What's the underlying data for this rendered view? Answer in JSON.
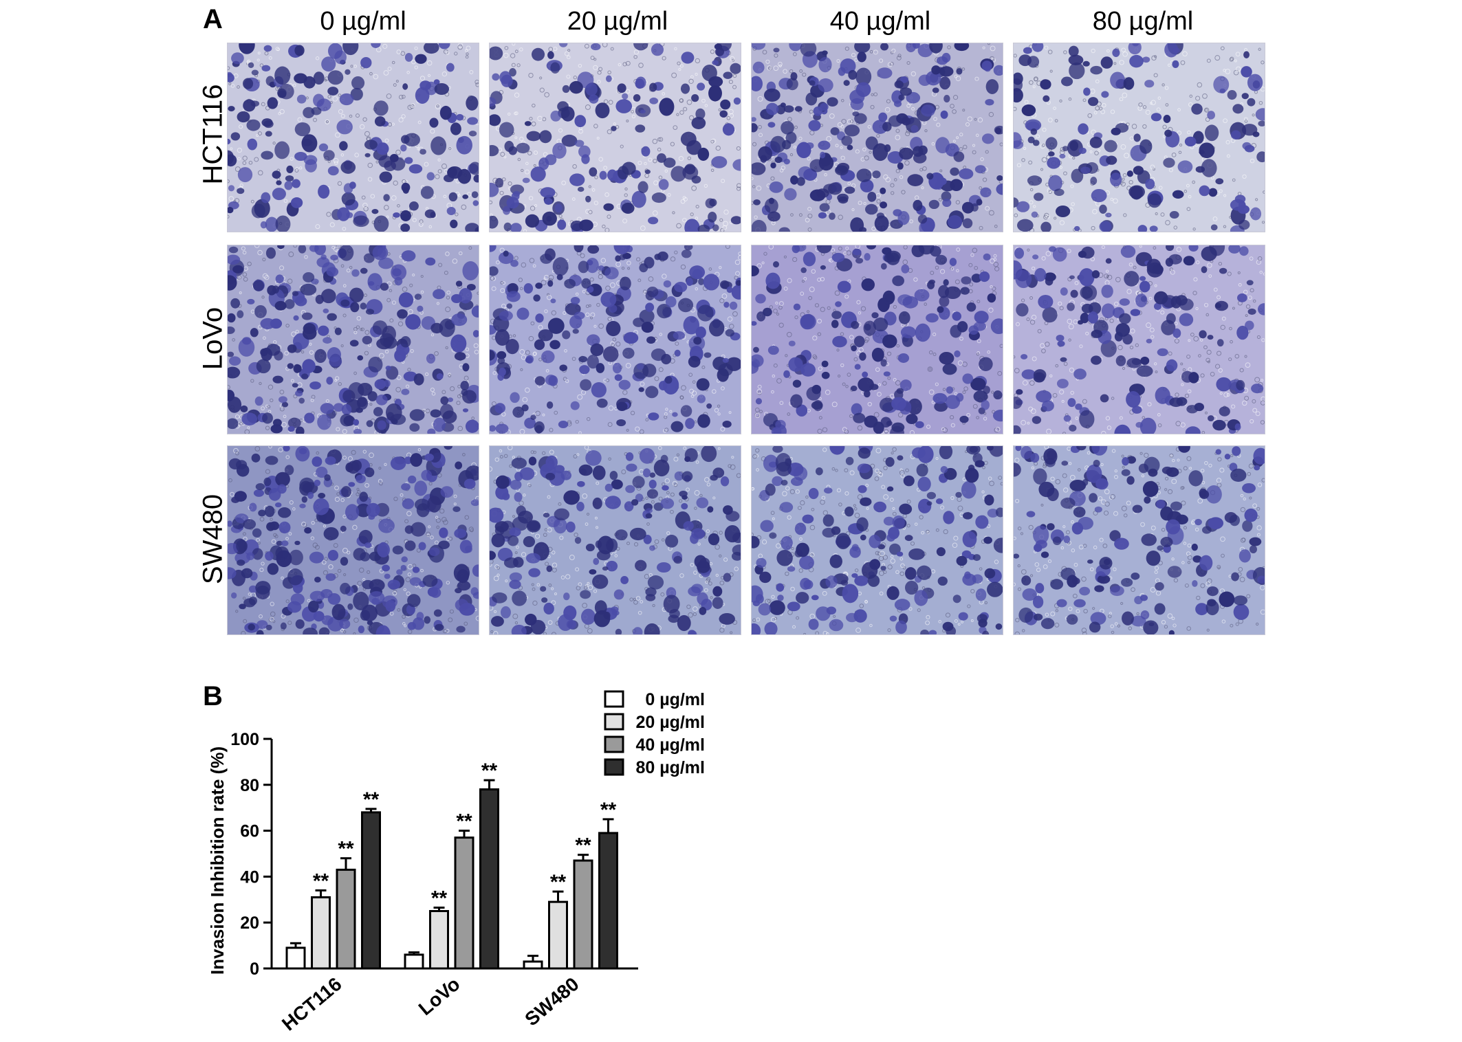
{
  "panel_a": {
    "letter": "A",
    "concentrations": [
      "0 µg/ml",
      "20 µg/ml",
      "40 µg/ml",
      "80 µg/ml"
    ],
    "cell_lines": [
      "HCT116",
      "LoVo",
      "SW480"
    ],
    "stain_colors": {
      "dark": "#2d2f78",
      "mid": "#4b4ca8",
      "light": "#c9cbe0"
    }
  },
  "panel_b": {
    "letter": "B",
    "significance_marker": "**"
  },
  "chart_data": {
    "type": "bar",
    "title": "",
    "xlabel": "",
    "ylabel": "Invasion Inhibition rate (%)",
    "ylim": [
      0,
      100
    ],
    "yticks": [
      0,
      20,
      40,
      60,
      80,
      100
    ],
    "categories": [
      "HCT116",
      "LoVo",
      "SW480"
    ],
    "series": [
      {
        "name": "0 µg/ml",
        "values": [
          9,
          6,
          3
        ],
        "errors": [
          2,
          1,
          2.5
        ],
        "significant": [
          false,
          false,
          false
        ],
        "fill": "#ffffff"
      },
      {
        "name": "20 µg/ml",
        "values": [
          31,
          25,
          29
        ],
        "errors": [
          3,
          1.5,
          4.5
        ],
        "significant": [
          true,
          true,
          true
        ],
        "fill": "#e0e0e0"
      },
      {
        "name": "40 µg/ml",
        "values": [
          43,
          57,
          47
        ],
        "errors": [
          5,
          3,
          2.5
        ],
        "significant": [
          true,
          true,
          true
        ],
        "fill": "#9a9a9a"
      },
      {
        "name": "80 µg/ml",
        "values": [
          68,
          78,
          59
        ],
        "errors": [
          1.5,
          4,
          6
        ],
        "significant": [
          true,
          true,
          true
        ],
        "fill": "#2f2f2f"
      }
    ],
    "legend_position": "top-right",
    "grid": false
  }
}
